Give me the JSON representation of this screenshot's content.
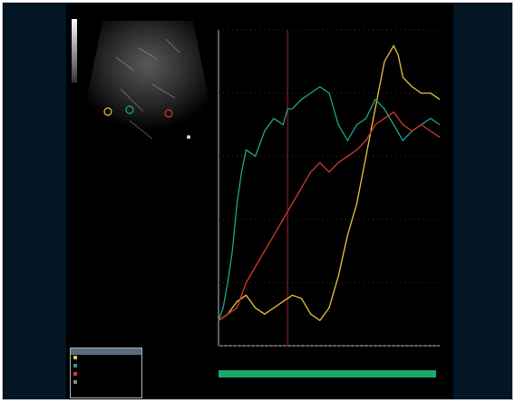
{
  "viewer": {
    "image_label": "",
    "scale_text": ""
  },
  "legend": {
    "header": "",
    "rows": [
      {
        "name": "",
        "value": "",
        "color": "#e8c43a"
      },
      {
        "name": "",
        "value": "",
        "color": "#22a38a"
      },
      {
        "name": "",
        "value": "",
        "color": "#d63a2e"
      },
      {
        "name": "",
        "value": "",
        "color": "#888888"
      }
    ]
  },
  "top_legend": [
    {
      "label": "",
      "color": "#e8c43a"
    },
    {
      "label": "",
      "color": "#d6c89a"
    },
    {
      "label": "",
      "color": "#22a38a"
    },
    {
      "label": "",
      "color": "#d63a2e"
    }
  ],
  "chart_data": {
    "type": "line",
    "title": "",
    "xlabel": "",
    "ylabel": "",
    "x_ticks": [],
    "y_ticks": [],
    "xlim": [
      0,
      48
    ],
    "ylim": [
      0,
      100
    ],
    "marker_x": 15,
    "series": [
      {
        "color": "#e8c43a",
        "x": [
          0,
          2,
          4,
          6,
          8,
          10,
          12,
          14,
          15,
          16,
          18,
          20,
          22,
          24,
          26,
          28,
          30,
          32,
          34,
          36,
          38,
          39,
          40,
          42,
          44,
          46,
          48
        ],
        "y": [
          8,
          10,
          14,
          16,
          12,
          10,
          12,
          14,
          15,
          16,
          15,
          10,
          8,
          12,
          22,
          35,
          45,
          60,
          75,
          90,
          95,
          92,
          85,
          82,
          80,
          80,
          78
        ]
      },
      {
        "color": "#22a38a",
        "x": [
          0,
          1,
          2,
          3,
          4,
          5,
          6,
          8,
          10,
          12,
          14,
          15,
          16,
          18,
          20,
          22,
          24,
          26,
          28,
          30,
          32,
          34,
          36,
          38,
          40,
          42,
          44,
          46,
          48
        ],
        "y": [
          8,
          12,
          20,
          30,
          45,
          55,
          62,
          60,
          68,
          72,
          70,
          75,
          75,
          78,
          80,
          82,
          80,
          70,
          65,
          70,
          72,
          78,
          75,
          70,
          65,
          68,
          70,
          72,
          70
        ]
      },
      {
        "color": "#d63a2e",
        "x": [
          0,
          2,
          4,
          6,
          8,
          10,
          12,
          14,
          16,
          18,
          20,
          22,
          24,
          26,
          28,
          30,
          32,
          34,
          36,
          38,
          40,
          42,
          44,
          46,
          48
        ],
        "y": [
          8,
          10,
          12,
          20,
          25,
          30,
          35,
          40,
          45,
          50,
          55,
          58,
          55,
          58,
          60,
          62,
          65,
          70,
          72,
          74,
          70,
          68,
          70,
          68,
          66
        ]
      }
    ]
  }
}
